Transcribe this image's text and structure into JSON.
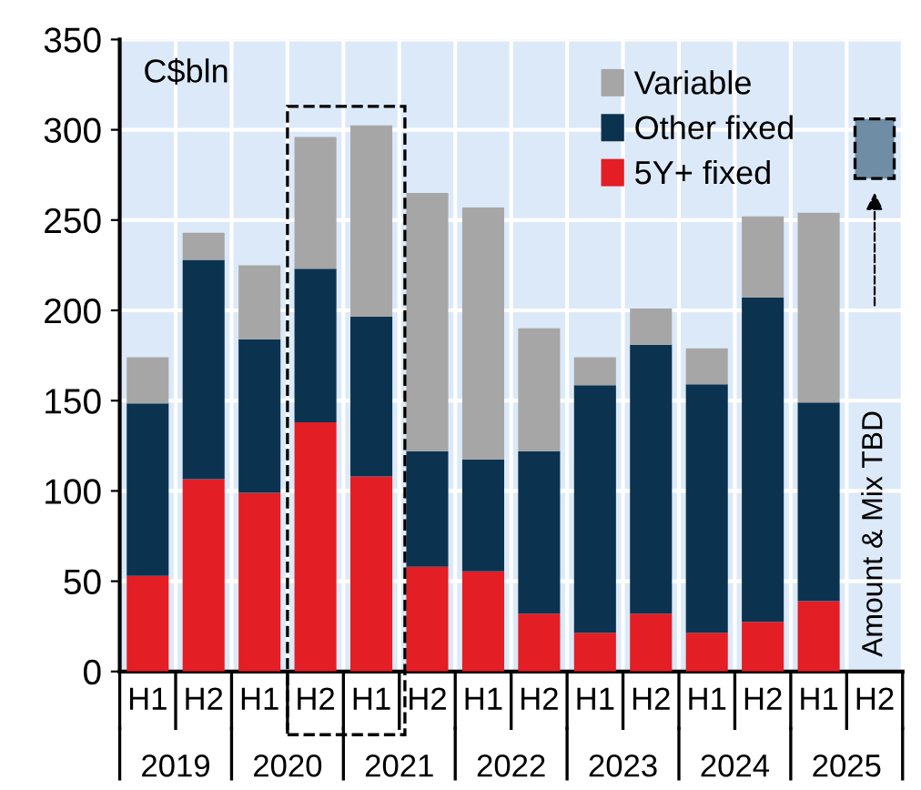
{
  "chart_data": {
    "type": "bar",
    "stacked": true,
    "ylabel": "C$bln",
    "categories": [
      "H1",
      "H2",
      "H1",
      "H2",
      "H1",
      "H2",
      "H1",
      "H2",
      "H1",
      "H2",
      "H1",
      "H2",
      "H1",
      "H2"
    ],
    "series": [
      {
        "name": "5Y+ fixed",
        "color": "#e31e24",
        "values": [
          53,
          106.5,
          99,
          138,
          108,
          58,
          55.5,
          32,
          21.5,
          32,
          21.5,
          27.5,
          39,
          null
        ]
      },
      {
        "name": "Other fixed",
        "color": "#0b3350",
        "values": [
          95.5,
          121.5,
          85,
          85,
          88.5,
          64,
          62,
          90,
          137,
          149,
          137.5,
          179.5,
          110,
          null
        ]
      },
      {
        "name": "Variable",
        "color": "#a6a6a6",
        "values": [
          25.5,
          15,
          41,
          73,
          106,
          143,
          139.5,
          68,
          15.5,
          20,
          20,
          45,
          105,
          null
        ]
      }
    ],
    "annotations": [
      "2019",
      "2020",
      "2021",
      "2022",
      "2023",
      "2024",
      "2025",
      "Amount & Mix TBD"
    ],
    "ylim": [
      0,
      350
    ],
    "yticks": [
      0,
      50,
      100,
      150,
      200,
      250,
      300,
      350
    ],
    "grid": true,
    "legend": "top right"
  }
}
